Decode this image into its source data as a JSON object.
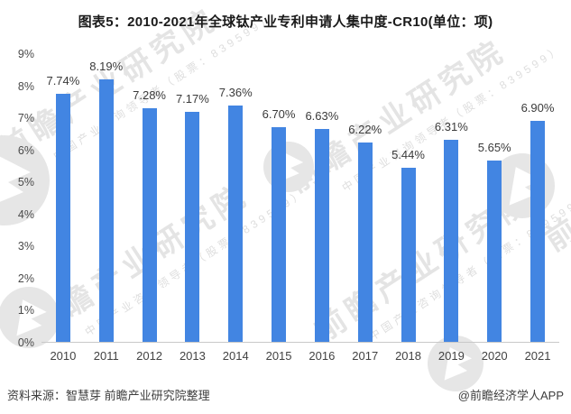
{
  "title": "图表5：2010-2021年全球钛产业专利申请人集中度-CR10(单位：项)",
  "chart_data": {
    "type": "bar",
    "title": "图表5：2010-2021年全球钛产业专利申请人集中度-CR10(单位：项)",
    "unit": "项",
    "categories": [
      "2010",
      "2011",
      "2012",
      "2013",
      "2014",
      "2015",
      "2016",
      "2017",
      "2018",
      "2019",
      "2020",
      "2021"
    ],
    "values": [
      7.74,
      8.19,
      7.28,
      7.17,
      7.36,
      6.7,
      6.63,
      6.22,
      5.44,
      6.31,
      5.65,
      6.9
    ],
    "value_labels": [
      "7.74%",
      "8.19%",
      "7.28%",
      "7.17%",
      "7.36%",
      "6.70%",
      "6.63%",
      "6.22%",
      "5.44%",
      "6.31%",
      "5.65%",
      "6.90%"
    ],
    "xlabel": "",
    "ylabel": "",
    "ylim": [
      0,
      9
    ],
    "y_ticks_top_to_bottom": [
      "9%",
      "8%",
      "7%",
      "6%",
      "5%",
      "4%",
      "3%",
      "2%",
      "1%",
      "0%"
    ],
    "grid": false,
    "legend_position": "none",
    "bar_color": "#4285e2"
  },
  "footer": {
    "source": "资料来源：智慧芽 前瞻产业研究院整理",
    "credit": "@前瞻经济学人APP"
  },
  "watermark": {
    "big_text": "前瞻产业研究院",
    "small_text": "中国产业咨询领导者（股票：839599）"
  },
  "colors": {
    "bar": "#4285e2",
    "axis_line": "#c9c9c9",
    "watermark": "#e4e4e4"
  }
}
